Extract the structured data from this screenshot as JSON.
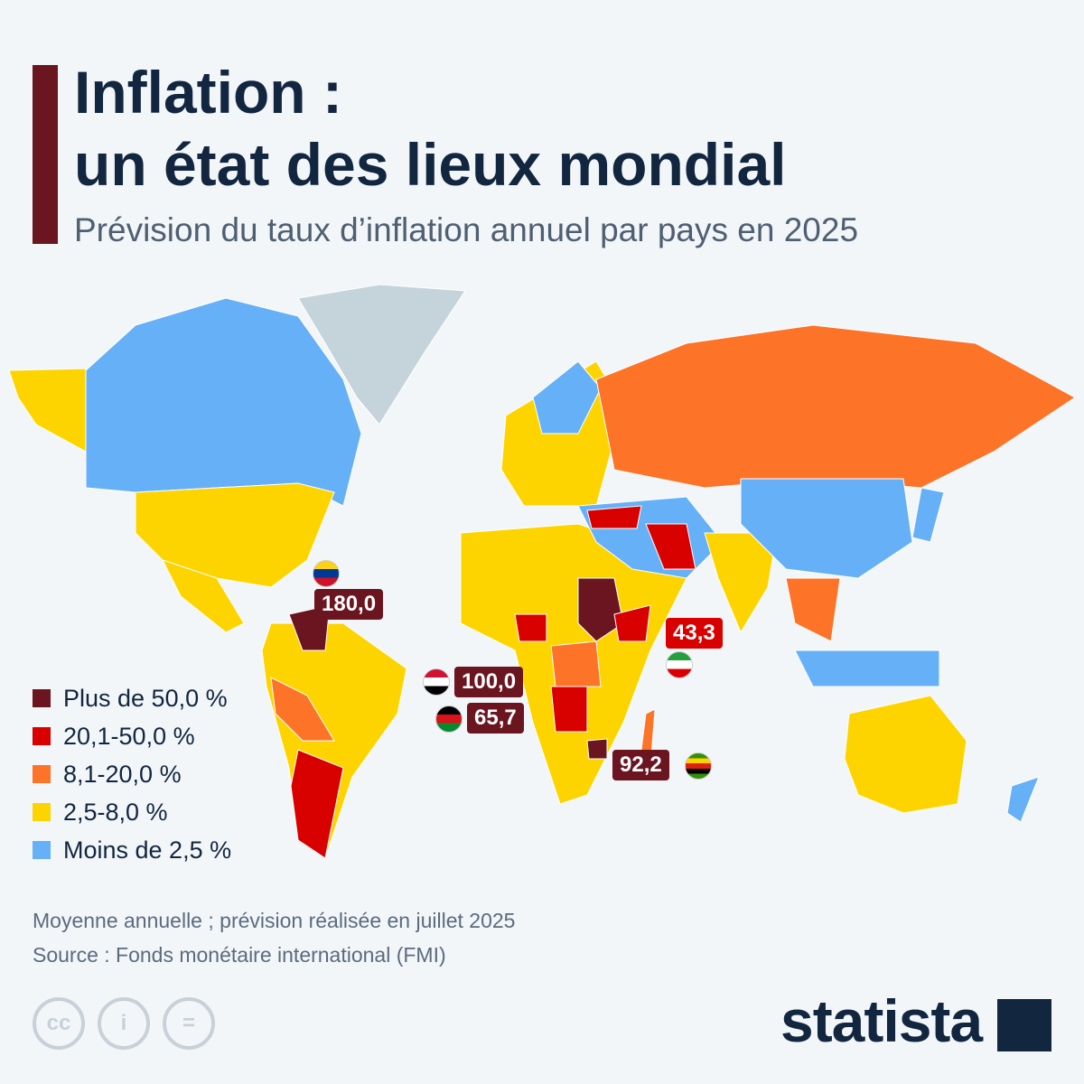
{
  "header": {
    "title_line1": "Inflation :",
    "title_line2": "un état des lieux mondial",
    "subtitle": "Prévision du taux d’inflation annuel par pays en 2025"
  },
  "legend": [
    {
      "label": "Plus de 50,0 %",
      "color": "#6b1520"
    },
    {
      "label": "20,1-50,0 %",
      "color": "#d90000"
    },
    {
      "label": "8,1-20,0 %",
      "color": "#fd7327"
    },
    {
      "label": "2,5-8,0 %",
      "color": "#fdd400"
    },
    {
      "label": "Moins de 2,5 %",
      "color": "#66b0f8"
    }
  ],
  "callouts": {
    "venezuela": "180,0",
    "sudan": "100,0",
    "south_sudan": "65,7",
    "zimbabwe": "92,2",
    "iran": "43,3"
  },
  "notes": {
    "line1": "Moyenne annuelle ; prévision réalisée en juillet 2025",
    "line2": "Source : Fonds monétaire international (FMI)"
  },
  "footer": {
    "brand": "statista",
    "cc": "cc",
    "by": "i",
    "nd": "="
  }
}
